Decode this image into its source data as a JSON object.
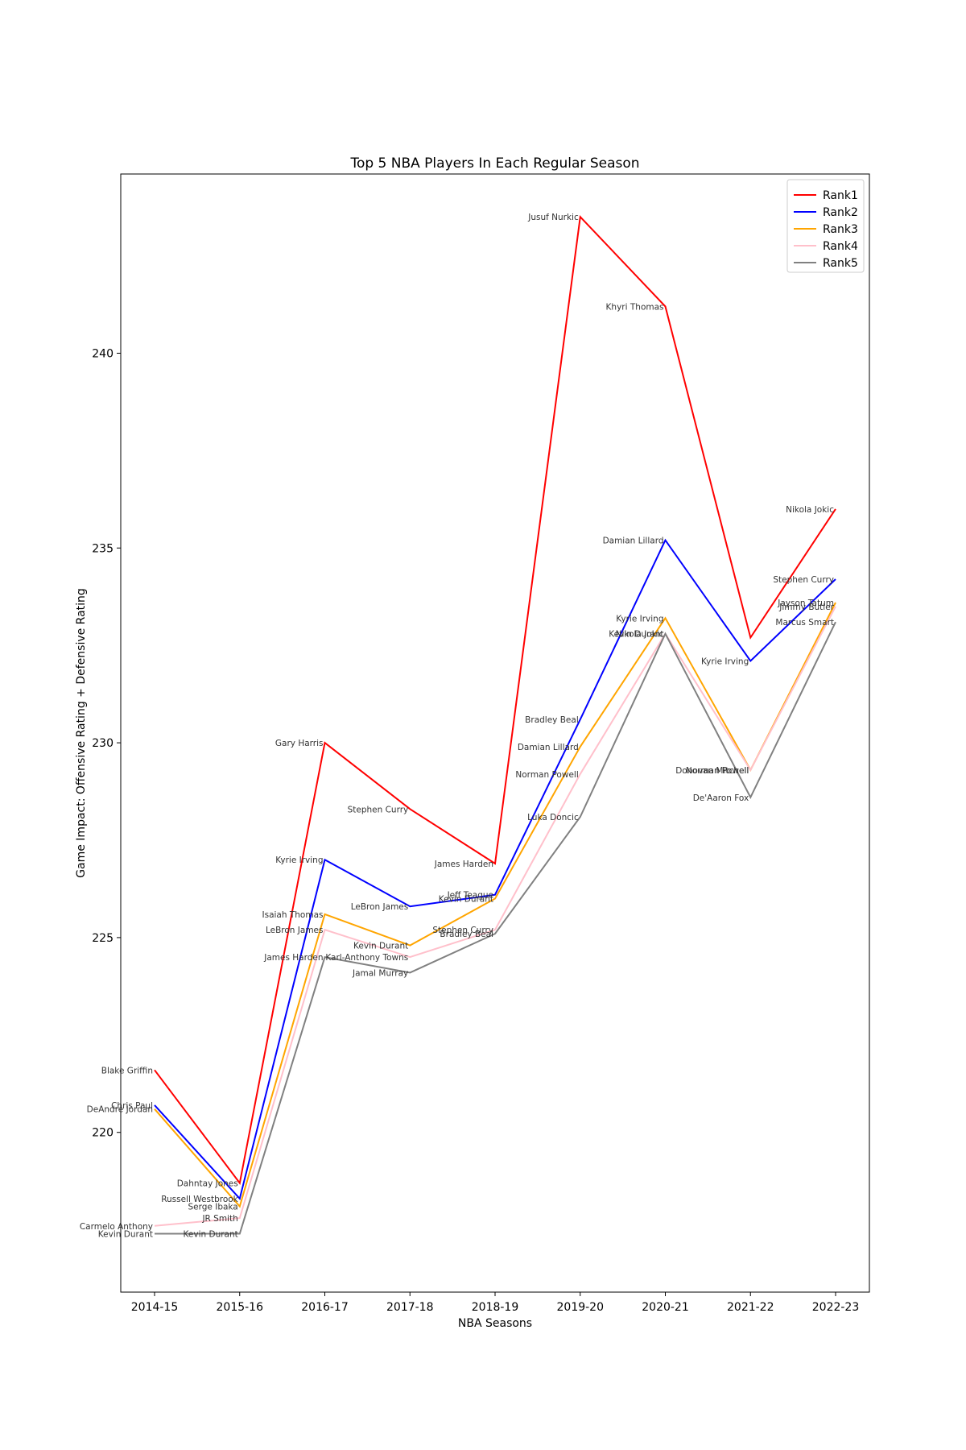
{
  "chart_data": {
    "type": "line",
    "title": "Top 5 NBA Players In Each Regular Season",
    "xlabel": "NBA Seasons",
    "ylabel": "Game Impact: Offensive Rating + Defensive Rating",
    "categories": [
      "2014-15",
      "2015-16",
      "2016-17",
      "2017-18",
      "2018-19",
      "2019-20",
      "2020-21",
      "2021-22",
      "2022-23"
    ],
    "ylim": [
      215.9,
      244.6
    ],
    "yticks": [
      220,
      225,
      230,
      235,
      240
    ],
    "grid": false,
    "legend_position": "top-right",
    "series": [
      {
        "name": "Rank1",
        "color": "#ff0000",
        "values": [
          221.6,
          218.7,
          230.0,
          228.3,
          226.9,
          243.5,
          241.2,
          232.7,
          236.0
        ],
        "players": [
          "Blake Griffin",
          "Dahntay Jones",
          "Gary Harris",
          "Stephen Curry",
          "James Harden",
          "Jusuf Nurkic",
          "Khyri Thomas",
          "",
          "Nikola Jokic"
        ]
      },
      {
        "name": "Rank2",
        "color": "#0000ff",
        "values": [
          220.7,
          218.3,
          227.0,
          225.8,
          226.1,
          230.6,
          235.2,
          232.1,
          234.2
        ],
        "players": [
          "Chris Paul",
          "Russell Westbrook",
          "Kyrie Irving",
          "LeBron James",
          "Jeff Teague",
          "Bradley Beal",
          "Damian Lillard",
          "Kyrie Irving",
          "Stephen Curry"
        ]
      },
      {
        "name": "Rank3",
        "color": "#ffa500",
        "values": [
          220.6,
          218.1,
          225.6,
          224.8,
          226.0,
          229.9,
          233.2,
          229.3,
          233.6
        ],
        "players": [
          "DeAndre Jordan",
          "Serge Ibaka",
          "Isaiah Thomas",
          "Kevin Durant",
          "Kevin Durant",
          "Damian Lillard",
          "Kyrie Irving",
          "Donovan Mitchell",
          "Jayson Tatum"
        ]
      },
      {
        "name": "Rank4",
        "color": "#ffc0cb",
        "values": [
          217.6,
          217.8,
          225.2,
          224.5,
          225.2,
          229.2,
          232.8,
          229.3,
          233.5
        ],
        "players": [
          "Carmelo Anthony",
          "JR Smith",
          "LeBron James",
          "Karl-Anthony Towns",
          "Stephen Curry",
          "Norman Powell",
          "Kevin Durant",
          "Norman Powell",
          "Jimmy Butler"
        ]
      },
      {
        "name": "Rank5",
        "color": "#808080",
        "values": [
          217.4,
          217.4,
          224.5,
          224.1,
          225.1,
          228.1,
          232.8,
          228.6,
          233.1
        ],
        "players": [
          "Kevin Durant",
          "Kevin Durant",
          "James Harden",
          "Jamal Murray",
          "Bradley Beal",
          "Luka Doncic",
          "Nikola Jokic",
          "De'Aaron Fox",
          "Marcus Smart"
        ]
      }
    ]
  }
}
